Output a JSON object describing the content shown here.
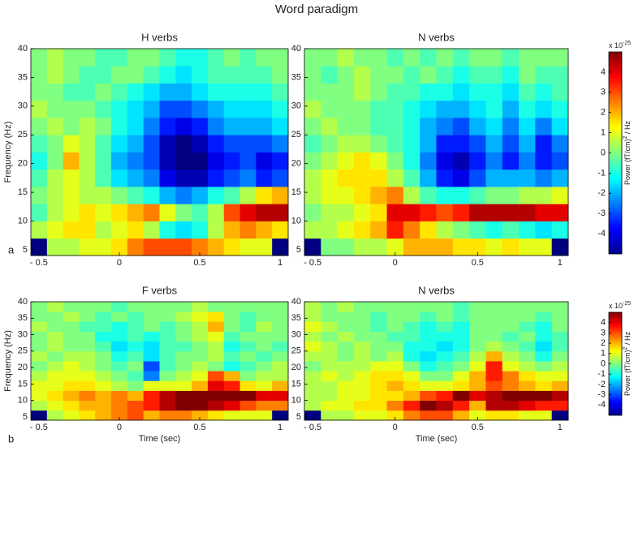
{
  "title": "Word paradigm",
  "panel_labels": [
    "a",
    "b"
  ],
  "chart_data": [
    {
      "type": "heatmap",
      "title": "H verbs",
      "ylabel": "Frequency (Hz)",
      "colormap": "jet",
      "clim": [
        -5,
        5
      ],
      "x": [
        -0.5,
        -0.4,
        -0.3,
        -0.2,
        -0.1,
        0,
        0.1,
        0.2,
        0.3,
        0.4,
        0.5,
        0.6,
        0.7,
        0.8,
        0.9,
        1.0
      ],
      "y": [
        5.5,
        8.5,
        11.5,
        14.5,
        17.5,
        20.5,
        23.5,
        26.5,
        29.5,
        32.5,
        35.5,
        38.5
      ],
      "xlim": [
        -0.55,
        1.05
      ],
      "ylim": [
        4,
        40
      ],
      "xticks": [
        {
          "value": -0.5,
          "label": "- 0.5"
        },
        0,
        0.5,
        1
      ],
      "yticks": [
        5,
        10,
        15,
        20,
        25,
        30,
        35,
        40
      ],
      "values": [
        [
          -5,
          0.5,
          0.5,
          1,
          1,
          1.5,
          2.5,
          3,
          3,
          3,
          2.5,
          2,
          1.5,
          1,
          1,
          -5
        ],
        [
          0.5,
          1,
          1.5,
          1.5,
          0.5,
          1,
          1.5,
          0.5,
          -1,
          -1.5,
          -1,
          0.5,
          2,
          2.5,
          2,
          1.5
        ],
        [
          -0.5,
          0.5,
          1,
          1.5,
          1,
          1.5,
          2,
          2.5,
          1,
          0,
          -0.5,
          0.5,
          3,
          4,
          4.5,
          4.5
        ],
        [
          0,
          0.5,
          1,
          0.5,
          0.5,
          0,
          -0.5,
          -1,
          -2,
          -2.5,
          -2,
          -1,
          -0.5,
          0.5,
          1.5,
          2
        ],
        [
          -0.5,
          0.5,
          1,
          0.5,
          -0.5,
          -1.5,
          -2,
          -2.5,
          -4,
          -4.5,
          -4.5,
          -3.5,
          -3,
          -2.5,
          -3.5,
          -3
        ],
        [
          -1,
          0,
          2,
          0.5,
          -0.5,
          -2,
          -2.5,
          -3,
          -4.5,
          -5,
          -5,
          -4,
          -3.5,
          -3,
          -4,
          -3.5
        ],
        [
          -0.5,
          0,
          1,
          0.5,
          -0.5,
          -1.5,
          -2,
          -3,
          -4.5,
          -5,
          -4.5,
          -3.5,
          -3,
          -3,
          -3,
          -2.5
        ],
        [
          0,
          0.5,
          0,
          0.5,
          0,
          -1,
          -1.5,
          -2.5,
          -3.5,
          -4,
          -3.5,
          -2.5,
          -2,
          -2,
          -2,
          -1.5
        ],
        [
          0.5,
          0,
          0,
          0,
          -0.5,
          -1,
          -1.5,
          -2,
          -3,
          -3,
          -2.5,
          -2,
          -1.5,
          -1.5,
          -1.5,
          -1
        ],
        [
          0,
          0,
          -0.5,
          -0.5,
          0,
          -0.5,
          -1,
          -1.5,
          -2,
          -2,
          -1.5,
          -1,
          -1,
          -1,
          -1,
          -0.5
        ],
        [
          0,
          0.5,
          0,
          -0.5,
          -0.5,
          0,
          0,
          -0.5,
          -1,
          -1.5,
          -1,
          -0.5,
          -0.5,
          -0.5,
          -0.5,
          0
        ],
        [
          0,
          0.5,
          0,
          0,
          -0.5,
          -0.5,
          0,
          0,
          -0.5,
          -1,
          -1,
          -0.5,
          0,
          -0.5,
          0,
          0
        ]
      ]
    },
    {
      "type": "heatmap",
      "title": "N verbs",
      "colormap": "jet",
      "clim": [
        -5,
        5
      ],
      "x": [
        -0.5,
        -0.4,
        -0.3,
        -0.2,
        -0.1,
        0,
        0.1,
        0.2,
        0.3,
        0.4,
        0.5,
        0.6,
        0.7,
        0.8,
        0.9,
        1.0
      ],
      "y": [
        5.5,
        8.5,
        11.5,
        14.5,
        17.5,
        20.5,
        23.5,
        26.5,
        29.5,
        32.5,
        35.5,
        38.5
      ],
      "xlim": [
        -0.55,
        1.05
      ],
      "ylim": [
        4,
        40
      ],
      "xticks": [
        {
          "value": -0.5,
          "label": "- 0.5"
        },
        0,
        0.5,
        1
      ],
      "yticks": [
        5,
        10,
        15,
        20,
        25,
        30,
        35,
        40
      ],
      "colorbar": {
        "ticks": [
          -4,
          -3,
          -2,
          -1,
          0,
          1,
          2,
          3,
          4
        ],
        "label": "Power (fT/cm)",
        "label_sup": "2",
        "label_end": " / Hz",
        "exponent": "x 10",
        "exponent_sup": "-25"
      },
      "values": [
        [
          -5,
          0,
          0,
          0.5,
          0.5,
          1,
          2,
          2,
          2,
          1.5,
          1.5,
          1,
          1.5,
          1,
          1,
          -5
        ],
        [
          0.5,
          0.5,
          1,
          1.5,
          2,
          3.5,
          2.5,
          1.5,
          0.5,
          0,
          -0.5,
          -1,
          -0.5,
          -1,
          -1.5,
          -1
        ],
        [
          0,
          0.5,
          0.5,
          1,
          1.5,
          4,
          4,
          3.5,
          3,
          3.5,
          4.5,
          4.5,
          4.5,
          4.5,
          4,
          4
        ],
        [
          0.5,
          1,
          1,
          1.5,
          2,
          2.5,
          0.5,
          -0.5,
          -1,
          -1,
          -0.5,
          0,
          0,
          0.5,
          0.5,
          1
        ],
        [
          0.5,
          1,
          1.5,
          1.5,
          1.5,
          0.5,
          -0.5,
          -2,
          -3.5,
          -4,
          -3,
          -2,
          -2,
          -2,
          -2.5,
          -2
        ],
        [
          0,
          0.5,
          1,
          1.5,
          1,
          0,
          -1,
          -2.5,
          -4,
          -4.5,
          -3.5,
          -2.5,
          -3.5,
          -2.5,
          -3.5,
          -3
        ],
        [
          -0.5,
          0,
          0.5,
          0.5,
          0,
          -0.5,
          -1,
          -2,
          -3.5,
          -3.5,
          -3,
          -2,
          -3,
          -2,
          -3.5,
          -2.5
        ],
        [
          0,
          0.5,
          0,
          0,
          -0.5,
          -0.5,
          -1,
          -2,
          -2.5,
          -3,
          -2,
          -1.5,
          -2.5,
          -1.5,
          -2.5,
          -1.5
        ],
        [
          0.5,
          0,
          0,
          0,
          -0.5,
          -0.5,
          -1,
          -1.5,
          -2,
          -2,
          -1.5,
          -1,
          -2,
          -1,
          -1.5,
          -1
        ],
        [
          0,
          0,
          0,
          0.5,
          0,
          -0.5,
          -0.5,
          -1,
          -1,
          -1.5,
          -1,
          -1,
          -1.5,
          -0.5,
          -1,
          -0.5
        ],
        [
          0,
          -0.5,
          0,
          0.5,
          0,
          0,
          -0.5,
          0,
          -0.5,
          -1,
          -0.5,
          -0.5,
          -1,
          0,
          -0.5,
          -0.5
        ],
        [
          0,
          0,
          0.5,
          0,
          0,
          -0.5,
          0,
          -0.5,
          0,
          -0.5,
          0,
          0,
          -0.5,
          0,
          0,
          0
        ]
      ]
    },
    {
      "type": "heatmap",
      "title": "F verbs",
      "ylabel": "Frequency (Hz)",
      "xlabel": "Time (sec)",
      "colormap": "jet",
      "clim": [
        -5,
        5
      ],
      "x": [
        -0.5,
        -0.4,
        -0.3,
        -0.2,
        -0.1,
        0,
        0.1,
        0.2,
        0.3,
        0.4,
        0.5,
        0.6,
        0.7,
        0.8,
        0.9,
        1.0
      ],
      "y": [
        5.5,
        8.5,
        11.5,
        14.5,
        17.5,
        20.5,
        23.5,
        26.5,
        29.5,
        32.5,
        35.5,
        38.5
      ],
      "xlim": [
        -0.55,
        1.05
      ],
      "ylim": [
        4,
        40
      ],
      "xticks": [
        {
          "value": -0.5,
          "label": "- 0.5"
        },
        0,
        0.5,
        1
      ],
      "yticks": [
        5,
        10,
        15,
        20,
        25,
        30,
        35,
        40
      ],
      "values": [
        [
          -5,
          0.5,
          1,
          1.5,
          2,
          2.5,
          3,
          2,
          2.5,
          2.5,
          2,
          1.5,
          1,
          1,
          1,
          -5
        ],
        [
          0.5,
          1,
          1.5,
          2,
          2,
          2.5,
          3,
          3.5,
          4.5,
          5,
          5,
          4.5,
          4,
          3,
          2.5,
          2.5
        ],
        [
          1,
          1.5,
          2,
          2.5,
          2,
          2.5,
          2,
          3.5,
          4.5,
          5,
          5,
          5,
          5,
          5,
          4,
          4
        ],
        [
          1,
          1,
          1.5,
          1.5,
          1,
          0.5,
          0,
          1,
          1,
          1,
          2,
          4,
          3.5,
          1.5,
          1,
          2
        ],
        [
          0.5,
          1,
          1,
          1,
          0.5,
          0,
          -0.5,
          -2.5,
          0,
          0.5,
          1,
          3,
          2,
          0,
          0.5,
          0.5
        ],
        [
          0,
          0.5,
          1,
          0.5,
          0,
          -0.5,
          0,
          -3,
          -0.5,
          0,
          0.5,
          0,
          -1,
          -0.5,
          0,
          0.5
        ],
        [
          0.5,
          0,
          0.5,
          0.5,
          0,
          -1,
          -0.5,
          -1.5,
          -0.5,
          0,
          0,
          0.5,
          -0.5,
          0,
          -0.5,
          0
        ],
        [
          0,
          0.5,
          0,
          0,
          -0.5,
          -1.5,
          -1,
          -1.5,
          -0.5,
          -0.5,
          0,
          0.5,
          -1,
          -0.5,
          0,
          -0.5
        ],
        [
          0,
          0.5,
          0,
          0,
          -1,
          -1,
          -0.5,
          -1,
          -0.5,
          0,
          0.5,
          1,
          -0.5,
          0,
          0,
          0
        ],
        [
          0.5,
          0,
          0,
          -0.5,
          -0.5,
          -1,
          -0.5,
          0,
          -0.5,
          0,
          0.5,
          2,
          0,
          -0.5,
          0.5,
          0
        ],
        [
          0,
          0,
          0.5,
          0,
          -0.5,
          0,
          -0.5,
          0,
          0,
          0.5,
          1,
          1.5,
          0,
          -0.5,
          0,
          0
        ],
        [
          0,
          0.5,
          0,
          0,
          0,
          -0.5,
          0,
          0,
          0,
          0,
          0.5,
          0,
          0,
          0,
          0,
          0
        ]
      ]
    },
    {
      "type": "heatmap",
      "title": "N verbs",
      "xlabel": "Time (sec)",
      "colormap": "jet",
      "clim": [
        -5,
        5
      ],
      "x": [
        -0.5,
        -0.4,
        -0.3,
        -0.2,
        -0.1,
        0,
        0.1,
        0.2,
        0.3,
        0.4,
        0.5,
        0.6,
        0.7,
        0.8,
        0.9,
        1.0
      ],
      "y": [
        5.5,
        8.5,
        11.5,
        14.5,
        17.5,
        20.5,
        23.5,
        26.5,
        29.5,
        32.5,
        35.5,
        38.5
      ],
      "xlim": [
        -0.55,
        1.05
      ],
      "ylim": [
        4,
        40
      ],
      "xticks": [
        {
          "value": -0.5,
          "label": "- 0.5"
        },
        0,
        0.5,
        1
      ],
      "yticks": [
        5,
        10,
        15,
        20,
        25,
        30,
        35,
        40
      ],
      "colorbar": {
        "ticks": [
          -4,
          -3,
          -2,
          -1,
          0,
          1,
          2,
          3,
          4
        ],
        "label": "Power (fT/cm)",
        "label_sup": "2",
        "label_end": " / Hz",
        "exponent": "x 10",
        "exponent_sup": "-25"
      },
      "values": [
        [
          -5,
          0.5,
          0.5,
          1,
          1,
          1.5,
          2.5,
          3,
          3,
          2,
          1,
          1.5,
          1.5,
          1,
          1,
          -5
        ],
        [
          0.5,
          1,
          1,
          1.5,
          1.5,
          2.5,
          3.5,
          5,
          4.5,
          3.5,
          2,
          4.5,
          4.5,
          4,
          3.5,
          3.5
        ],
        [
          0.5,
          0.5,
          1,
          1,
          1.5,
          1.5,
          2,
          3,
          3.5,
          5,
          4,
          4.5,
          5,
          5,
          5,
          4.5
        ],
        [
          0.5,
          0.5,
          1,
          1,
          1.5,
          2,
          1.5,
          1,
          1,
          1.5,
          2,
          3,
          2.5,
          2,
          1.5,
          2
        ],
        [
          0.5,
          1,
          0.5,
          1,
          1.5,
          1.5,
          1,
          0,
          0,
          1,
          2,
          3.5,
          2.5,
          1.5,
          1,
          1
        ],
        [
          0,
          0.5,
          0.5,
          0.5,
          1,
          1,
          0,
          -1,
          -0.5,
          0,
          1,
          3.5,
          1,
          0.5,
          0,
          0.5
        ],
        [
          0.5,
          0.5,
          0,
          0.5,
          0,
          0.5,
          -1,
          -1.5,
          -1,
          -0.5,
          0.5,
          2,
          0.5,
          0,
          -1,
          0
        ],
        [
          1,
          0.5,
          0,
          0.5,
          0,
          0,
          -1,
          -1,
          -1.5,
          -1,
          0,
          0.5,
          0,
          -0.5,
          -1.5,
          -0.5
        ],
        [
          0.5,
          0,
          0.5,
          0,
          0,
          -0.5,
          -0.5,
          -1,
          -1,
          -1,
          0,
          0,
          -0.5,
          0,
          -1,
          -0.5
        ],
        [
          1,
          0.5,
          0,
          0,
          -0.5,
          0,
          -0.5,
          -1,
          -0.5,
          -1,
          0,
          0,
          0,
          -0.5,
          -1,
          0
        ],
        [
          0.5,
          0,
          0,
          0,
          -0.5,
          0,
          0,
          -0.5,
          0,
          -0.5,
          0,
          0,
          0,
          0,
          -0.5,
          0
        ],
        [
          0.5,
          0,
          0.5,
          0,
          0,
          0,
          0,
          0,
          0,
          -0.5,
          0,
          0,
          0,
          0,
          0,
          0
        ]
      ]
    }
  ]
}
